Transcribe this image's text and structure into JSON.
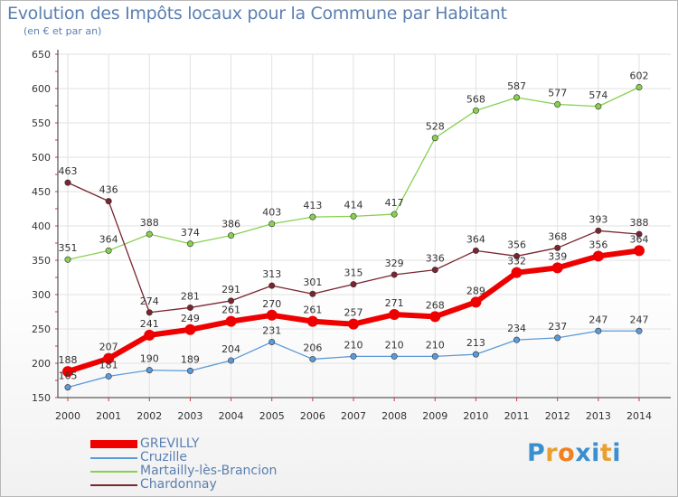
{
  "title": "Evolution des Impôts locaux pour la Commune par Habitant",
  "subtitle": "(en € et par an)",
  "logo": {
    "text": "Proxiti",
    "colors": [
      "#3a8fd0",
      "#e8a030",
      "#f08020",
      "#3a8fd0",
      "#3a8fd0",
      "#e8a030",
      "#3a8fd0"
    ]
  },
  "chart_data": {
    "type": "line",
    "title": "Evolution des Impôts locaux pour la Commune par Habitant",
    "subtitle": "(en € et par an)",
    "x": [
      "2000",
      "2001",
      "2002",
      "2003",
      "2004",
      "2005",
      "2006",
      "2007",
      "2008",
      "2009",
      "2010",
      "2011",
      "2012",
      "2013",
      "2014"
    ],
    "ylim": [
      150,
      650
    ],
    "yticks": [
      150,
      200,
      250,
      300,
      350,
      400,
      450,
      500,
      550,
      600,
      650
    ],
    "grid": true,
    "legend_position": "bottom-left",
    "series": [
      {
        "name": "GREVILLY",
        "color": "#ee0000",
        "values": [
          188,
          207,
          241,
          249,
          261,
          270,
          261,
          257,
          271,
          268,
          289,
          332,
          339,
          356,
          364
        ],
        "labels": [
          "188",
          "207",
          "241",
          "249",
          "261",
          "270",
          "261",
          "257",
          "271",
          "268",
          "289",
          "332",
          "339",
          "356",
          "364"
        ],
        "bold": true
      },
      {
        "name": "Cruzille",
        "color": "#5b9ad8",
        "values": [
          165,
          181,
          190,
          189,
          204,
          231,
          206,
          210,
          210,
          210,
          213,
          234,
          237,
          247,
          247
        ],
        "labels": [
          "165",
          "181",
          "190",
          "189",
          "204",
          "231",
          "206",
          "210",
          "210",
          "210",
          "213",
          "234",
          "237",
          "247",
          "247"
        ],
        "bold": false
      },
      {
        "name": "Martailly-lès-Brancion",
        "color": "#88d050",
        "values": [
          351,
          364,
          388,
          374,
          386,
          403,
          413,
          414,
          417,
          528,
          568,
          587,
          577,
          574,
          602
        ],
        "labels": [
          "351",
          "364",
          "388",
          "374",
          "386",
          "403",
          "413",
          "414",
          "417",
          "528",
          "568",
          "587",
          "577",
          "574",
          "602"
        ],
        "bold": false
      },
      {
        "name": "Chardonnay",
        "color": "#7a2530",
        "values": [
          463,
          436,
          274,
          281,
          291,
          313,
          301,
          315,
          329,
          336,
          364,
          356,
          368,
          393,
          388
        ],
        "labels": [
          "463",
          "436",
          "274",
          "281",
          "291",
          "313",
          "301",
          "315",
          "329",
          "336",
          "364",
          "356",
          "368",
          "393",
          "388"
        ],
        "bold": false
      }
    ]
  }
}
